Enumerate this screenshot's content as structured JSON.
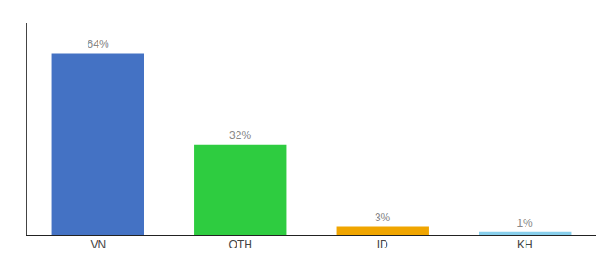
{
  "chart_data": {
    "type": "bar",
    "categories": [
      "VN",
      "OTH",
      "ID",
      "KH"
    ],
    "values": [
      64,
      32,
      3,
      1
    ],
    "value_labels": [
      "64%",
      "32%",
      "3%",
      "1%"
    ],
    "data_labels": true,
    "colors": [
      "#4472c4",
      "#2ecc40",
      "#f0a500",
      "#87ceeb"
    ],
    "ylim": [
      0,
      75
    ],
    "grid": false,
    "tick_labels": "x"
  }
}
